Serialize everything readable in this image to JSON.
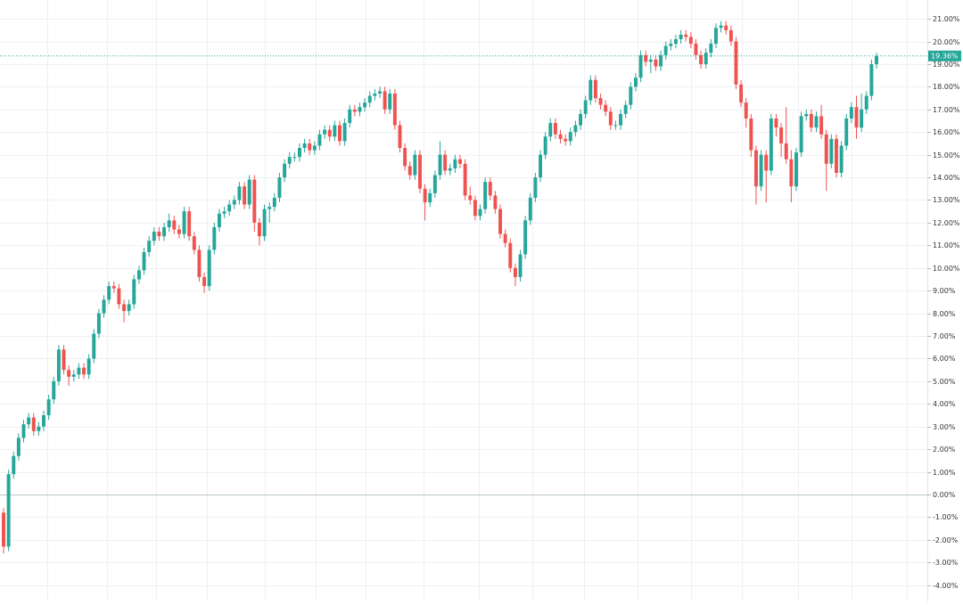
{
  "chart_data": {
    "type": "candlestick",
    "up_color": "#26a69a",
    "down_color": "#ef5350",
    "grid": true,
    "ylim": [
      -4.72,
      21.83
    ],
    "yticks": [
      {
        "value": -4,
        "label": "-4.00%"
      },
      {
        "value": -3,
        "label": "-3.00%"
      },
      {
        "value": -2,
        "label": "-2.00%"
      },
      {
        "value": -1,
        "label": "-1.00%"
      },
      {
        "value": 0,
        "label": "0.00%"
      },
      {
        "value": 1,
        "label": "1.00%"
      },
      {
        "value": 2,
        "label": "2.00%"
      },
      {
        "value": 3,
        "label": "3.00%"
      },
      {
        "value": 4,
        "label": "4.00%"
      },
      {
        "value": 5,
        "label": "5.00%"
      },
      {
        "value": 6,
        "label": "6.00%"
      },
      {
        "value": 7,
        "label": "7.00%"
      },
      {
        "value": 8,
        "label": "8.00%"
      },
      {
        "value": 9,
        "label": "9.00%"
      },
      {
        "value": 10,
        "label": "10.00%"
      },
      {
        "value": 11,
        "label": "11.00%"
      },
      {
        "value": 12,
        "label": "12.00%"
      },
      {
        "value": 13,
        "label": "13.00%"
      },
      {
        "value": 14,
        "label": "14.00%"
      },
      {
        "value": 15,
        "label": "15.00%"
      },
      {
        "value": 16,
        "label": "16.00%"
      },
      {
        "value": 17,
        "label": "17.00%"
      },
      {
        "value": 18,
        "label": "18.00%"
      },
      {
        "value": 19,
        "label": "19.00%"
      },
      {
        "value": 20,
        "label": "20.00%"
      },
      {
        "value": 21,
        "label": "21.00%"
      }
    ],
    "open": [
      -0.8,
      -2.3,
      0.9,
      1.7,
      2.5,
      3.1,
      3.4,
      2.8,
      3.0,
      3.5,
      4.2,
      5.0,
      6.4,
      5.5,
      5.2,
      5.3,
      5.6,
      5.3,
      6.0,
      7.1,
      8.0,
      8.6,
      9.2,
      9.1,
      8.4,
      8.1,
      8.4,
      9.5,
      9.9,
      10.7,
      11.2,
      11.6,
      11.4,
      11.8,
      12.1,
      11.7,
      11.5,
      12.5,
      11.4,
      10.8,
      9.6,
      9.2,
      10.8,
      11.8,
      12.4,
      12.5,
      12.8,
      13.0,
      13.6,
      12.8,
      13.9,
      12.0,
      11.4,
      12.6,
      12.7,
      13.1,
      14.0,
      14.6,
      14.9,
      14.9,
      15.3,
      15.5,
      15.2,
      15.4,
      15.9,
      16.1,
      15.8,
      16.3,
      15.6,
      16.4,
      17.0,
      16.9,
      17.1,
      17.3,
      17.6,
      17.7,
      17.8,
      17.0,
      17.7,
      16.3,
      15.3,
      14.5,
      14.1,
      15.0,
      13.5,
      12.9,
      13.3,
      14.1,
      15.0,
      14.3,
      14.4,
      14.8,
      14.6,
      13.2,
      13.0,
      12.3,
      12.6,
      13.8,
      13.2,
      12.6,
      11.5,
      11.1,
      10.0,
      9.6,
      10.6,
      12.1,
      13.1,
      14.0,
      15.0,
      15.8,
      16.4,
      15.9,
      15.7,
      15.6,
      16.0,
      16.3,
      16.8,
      17.4,
      18.3,
      17.5,
      17.2,
      16.9,
      16.3,
      16.3,
      16.8,
      17.2,
      18.0,
      18.4,
      19.4,
      19.1,
      19.2,
      18.9,
      19.4,
      19.8,
      19.9,
      20.1,
      20.3,
      20.2,
      19.9,
      19.4,
      19.0,
      19.5,
      19.9,
      20.6,
      20.7,
      20.5,
      20.0,
      18.1,
      17.3,
      16.6,
      15.2,
      13.6,
      15.0,
      14.3,
      16.6,
      16.2,
      15.5,
      14.8,
      13.6,
      15.1,
      16.7,
      16.8,
      16.2,
      16.7,
      15.9,
      14.6,
      15.7,
      14.2,
      15.4,
      16.6,
      17.1,
      16.2,
      17.0,
      17.6,
      19.0
    ],
    "close": [
      -2.3,
      0.9,
      1.7,
      2.5,
      3.1,
      3.4,
      2.8,
      3.0,
      3.5,
      4.2,
      5.0,
      6.4,
      5.5,
      5.2,
      5.3,
      5.6,
      5.3,
      6.0,
      7.1,
      8.0,
      8.6,
      9.2,
      9.1,
      8.4,
      8.1,
      8.4,
      9.5,
      9.9,
      10.7,
      11.2,
      11.6,
      11.4,
      11.8,
      12.1,
      11.7,
      11.5,
      12.5,
      11.4,
      10.8,
      9.6,
      9.2,
      10.8,
      11.8,
      12.4,
      12.5,
      12.8,
      13.0,
      13.6,
      12.8,
      13.9,
      12.0,
      11.4,
      12.6,
      12.7,
      13.1,
      14.0,
      14.6,
      14.9,
      14.9,
      15.3,
      15.5,
      15.2,
      15.4,
      15.9,
      16.1,
      15.8,
      16.3,
      15.6,
      16.4,
      17.0,
      16.9,
      17.1,
      17.3,
      17.6,
      17.7,
      17.8,
      17.0,
      17.7,
      16.3,
      15.3,
      14.5,
      14.1,
      15.0,
      13.5,
      12.9,
      13.3,
      14.1,
      15.0,
      14.3,
      14.4,
      14.8,
      14.6,
      13.2,
      13.0,
      12.3,
      12.6,
      13.8,
      13.2,
      12.6,
      11.5,
      11.1,
      10.0,
      9.6,
      10.6,
      12.1,
      13.1,
      14.0,
      15.0,
      15.8,
      16.4,
      15.9,
      15.7,
      15.6,
      16.0,
      16.3,
      16.8,
      17.4,
      18.3,
      17.5,
      17.2,
      16.9,
      16.3,
      16.3,
      16.8,
      17.2,
      18.0,
      18.4,
      19.4,
      19.1,
      19.2,
      18.9,
      19.4,
      19.8,
      19.9,
      20.1,
      20.3,
      20.2,
      19.9,
      19.4,
      19.0,
      19.5,
      19.9,
      20.6,
      20.7,
      20.5,
      20.0,
      18.1,
      17.3,
      16.6,
      15.2,
      13.6,
      15.0,
      14.3,
      16.6,
      16.2,
      15.5,
      14.8,
      13.6,
      15.1,
      16.7,
      16.8,
      16.2,
      16.7,
      15.9,
      14.6,
      15.7,
      14.2,
      15.4,
      16.6,
      17.1,
      16.2,
      17.0,
      17.6,
      19.0,
      19.36
    ],
    "high": [
      -0.6,
      1.1,
      1.9,
      2.7,
      3.3,
      3.6,
      3.6,
      3.2,
      3.7,
      4.4,
      5.2,
      6.6,
      6.6,
      5.7,
      5.5,
      5.8,
      5.8,
      6.2,
      7.3,
      8.2,
      8.8,
      9.4,
      9.4,
      9.3,
      8.6,
      8.6,
      9.7,
      10.1,
      10.9,
      11.4,
      11.8,
      11.8,
      12.0,
      12.4,
      12.3,
      11.9,
      12.7,
      12.7,
      11.6,
      11.0,
      9.8,
      11.0,
      12.0,
      12.6,
      12.7,
      13.0,
      13.2,
      13.8,
      13.8,
      14.1,
      14.1,
      12.2,
      12.8,
      12.9,
      13.3,
      14.2,
      14.8,
      15.1,
      15.1,
      15.5,
      15.7,
      15.7,
      15.6,
      16.1,
      16.3,
      16.3,
      16.5,
      16.5,
      16.6,
      17.2,
      17.2,
      17.3,
      17.5,
      17.8,
      17.9,
      18.0,
      18.0,
      17.9,
      17.9,
      16.5,
      15.5,
      14.7,
      15.2,
      15.2,
      13.7,
      13.5,
      14.3,
      15.6,
      15.2,
      14.6,
      15.0,
      15.0,
      14.8,
      13.6,
      13.2,
      12.8,
      14.0,
      14.0,
      13.4,
      12.8,
      11.7,
      11.3,
      10.2,
      10.8,
      12.3,
      13.3,
      14.2,
      15.2,
      16.0,
      16.6,
      16.6,
      16.1,
      15.9,
      16.2,
      16.5,
      17.0,
      17.6,
      18.5,
      18.5,
      17.7,
      17.4,
      17.1,
      16.5,
      17.0,
      17.4,
      18.2,
      18.6,
      19.6,
      19.6,
      19.4,
      19.4,
      19.6,
      20.0,
      20.1,
      20.3,
      20.5,
      20.5,
      20.4,
      20.1,
      19.6,
      19.7,
      20.1,
      20.8,
      20.9,
      20.9,
      20.7,
      20.2,
      18.3,
      17.5,
      16.8,
      15.4,
      15.2,
      15.2,
      16.8,
      16.8,
      16.4,
      17.1,
      15.2,
      15.3,
      16.9,
      17.0,
      17.0,
      16.9,
      17.2,
      16.1,
      15.9,
      15.9,
      15.6,
      16.8,
      17.3,
      17.6,
      17.7,
      17.8,
      19.2,
      19.5
    ],
    "low": [
      -2.6,
      -2.5,
      0.7,
      1.5,
      2.3,
      2.9,
      2.6,
      2.6,
      2.8,
      3.3,
      4.0,
      4.8,
      5.3,
      4.8,
      5.0,
      5.1,
      5.1,
      5.1,
      5.8,
      6.9,
      7.8,
      8.4,
      8.9,
      8.2,
      7.6,
      7.9,
      8.2,
      9.3,
      9.7,
      10.5,
      11.0,
      11.2,
      11.2,
      11.6,
      11.5,
      11.3,
      11.3,
      11.2,
      10.6,
      9.4,
      8.9,
      9.0,
      10.6,
      11.6,
      12.2,
      12.3,
      12.6,
      12.8,
      12.6,
      12.6,
      11.6,
      11.0,
      11.2,
      12.0,
      12.5,
      12.9,
      13.8,
      14.4,
      14.7,
      14.7,
      15.1,
      15.0,
      15.0,
      15.2,
      15.7,
      15.6,
      15.6,
      15.4,
      15.4,
      16.2,
      16.7,
      16.7,
      16.9,
      17.1,
      17.4,
      17.5,
      16.8,
      16.8,
      16.1,
      15.1,
      14.3,
      13.9,
      13.9,
      13.3,
      12.1,
      12.7,
      13.1,
      13.9,
      14.1,
      14.1,
      14.2,
      14.4,
      13.0,
      12.8,
      12.1,
      12.1,
      12.4,
      13.0,
      12.4,
      11.3,
      10.9,
      9.8,
      9.2,
      9.4,
      10.4,
      11.9,
      12.9,
      13.8,
      14.8,
      15.6,
      15.7,
      15.5,
      15.4,
      15.4,
      15.8,
      16.1,
      16.6,
      17.2,
      17.3,
      17.0,
      16.7,
      16.1,
      16.1,
      16.1,
      16.6,
      17.0,
      17.8,
      18.2,
      18.9,
      18.6,
      18.7,
      18.7,
      19.2,
      19.6,
      19.7,
      19.9,
      20.0,
      19.7,
      19.2,
      18.8,
      18.8,
      19.3,
      19.7,
      20.4,
      20.3,
      19.8,
      17.9,
      17.1,
      16.2,
      14.9,
      12.8,
      13.4,
      12.9,
      14.1,
      15.8,
      14.9,
      14.6,
      12.9,
      13.4,
      14.9,
      16.5,
      16.0,
      16.0,
      15.7,
      13.4,
      14.4,
      14.0,
      14.0,
      15.2,
      16.4,
      15.7,
      16.0,
      16.8,
      17.4,
      18.8
    ],
    "last_value_label": "19.36%"
  }
}
